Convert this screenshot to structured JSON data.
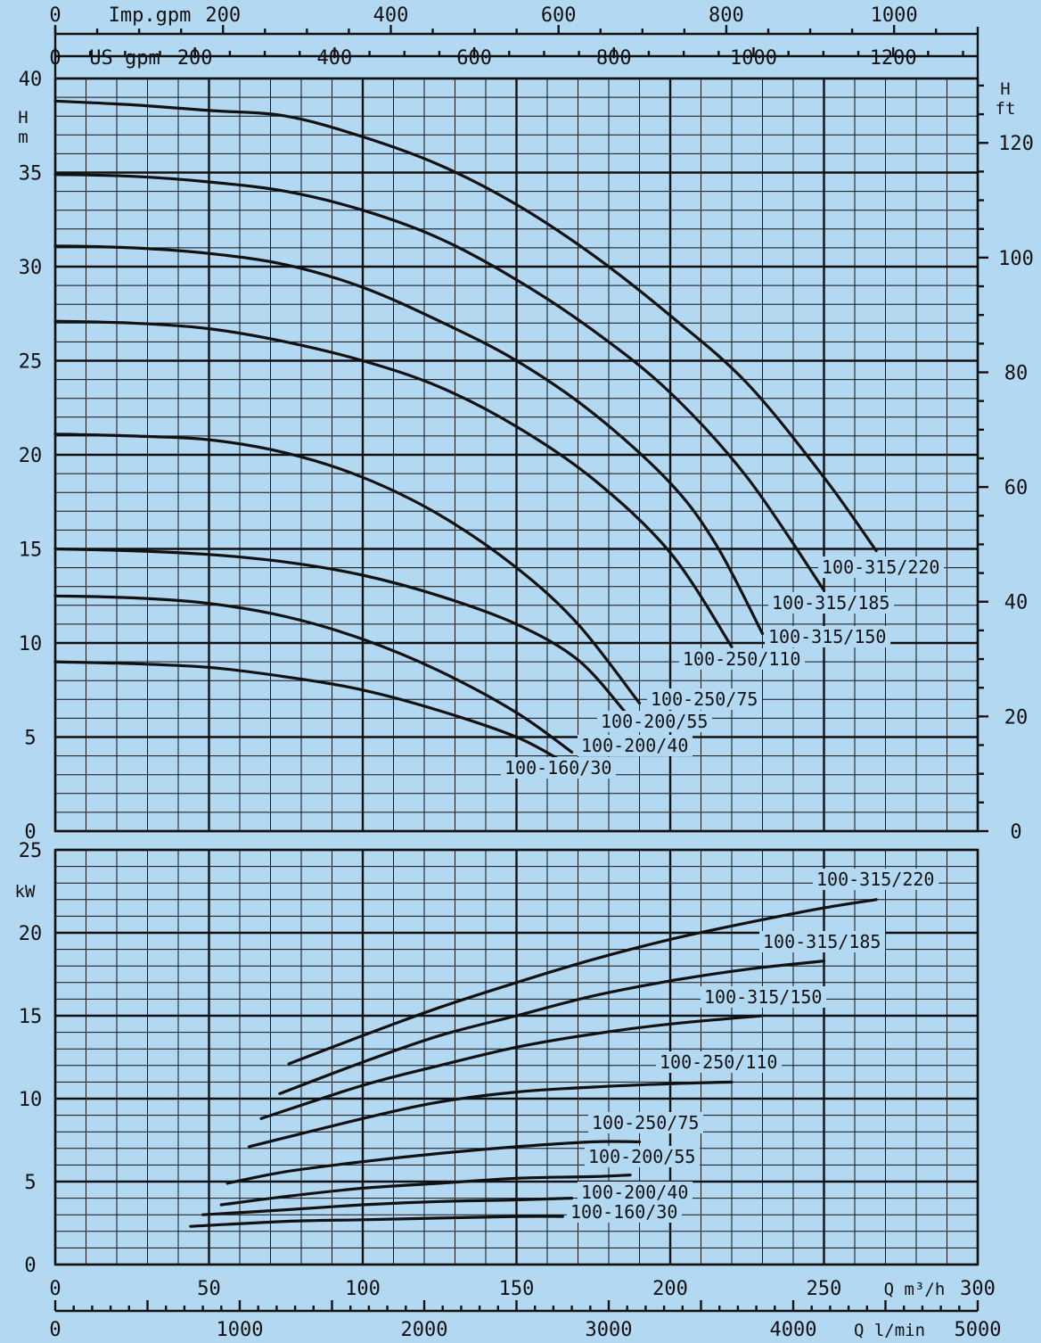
{
  "chart_data": [
    {
      "type": "line",
      "title": "",
      "ylabel": "H",
      "yunit": "m",
      "y2label": "H",
      "y2unit": "ft",
      "ylim": [
        0,
        40
      ],
      "yticks": [
        0,
        5,
        10,
        15,
        20,
        25,
        30,
        35,
        40
      ],
      "y2ticks": [
        0,
        20,
        40,
        60,
        80,
        100,
        120
      ],
      "x_top_imp_label": "Imp.gpm",
      "x_top_imp_ticks": [
        "0",
        "200",
        "400",
        "600",
        "800",
        "1000"
      ],
      "x_top_us_label": "US gpm",
      "x_top_us_ticks": [
        "0",
        "200",
        "400",
        "600",
        "800",
        "1000",
        "1200"
      ],
      "series": [
        {
          "name": "100-315/220",
          "x": [
            0,
            25,
            50,
            75,
            100,
            125,
            150,
            175,
            200,
            225,
            250,
            267
          ],
          "y": [
            38.8,
            38.6,
            38.3,
            38.0,
            36.9,
            35.4,
            33.3,
            30.6,
            27.4,
            23.8,
            18.8,
            14.9
          ]
        },
        {
          "name": "100-315/185",
          "x": [
            0,
            25,
            50,
            75,
            100,
            125,
            150,
            175,
            200,
            225,
            250
          ],
          "y": [
            34.9,
            34.8,
            34.5,
            34.0,
            33.0,
            31.5,
            29.3,
            26.6,
            23.3,
            18.8,
            12.8
          ]
        },
        {
          "name": "100-315/150",
          "x": [
            0,
            25,
            50,
            75,
            100,
            125,
            150,
            175,
            200,
            215,
            230
          ],
          "y": [
            31.1,
            31.0,
            30.7,
            30.1,
            28.9,
            27.1,
            25.0,
            22.2,
            18.5,
            15.2,
            10.5
          ]
        },
        {
          "name": "100-250/110",
          "x": [
            0,
            25,
            50,
            75,
            100,
            125,
            150,
            175,
            200,
            220
          ],
          "y": [
            27.1,
            27.0,
            26.7,
            26.0,
            25.0,
            23.6,
            21.5,
            18.7,
            14.8,
            9.8
          ]
        },
        {
          "name": "100-250/75",
          "x": [
            0,
            25,
            50,
            75,
            100,
            125,
            150,
            170,
            190
          ],
          "y": [
            21.1,
            21.0,
            20.8,
            20.1,
            18.8,
            16.8,
            14.0,
            11.0,
            6.8
          ]
        },
        {
          "name": "100-200/55",
          "x": [
            0,
            25,
            50,
            75,
            100,
            125,
            150,
            170,
            185
          ],
          "y": [
            15.0,
            14.9,
            14.7,
            14.3,
            13.6,
            12.5,
            11.0,
            9.1,
            6.4
          ]
        },
        {
          "name": "100-200/40",
          "x": [
            0,
            25,
            50,
            75,
            100,
            125,
            150,
            168
          ],
          "y": [
            12.5,
            12.4,
            12.1,
            11.4,
            10.2,
            8.5,
            6.3,
            4.2
          ]
        },
        {
          "name": "100-160/30",
          "x": [
            0,
            25,
            50,
            75,
            100,
            125,
            150,
            165
          ],
          "y": [
            9.0,
            8.9,
            8.7,
            8.2,
            7.5,
            6.4,
            5.0,
            3.7
          ]
        }
      ]
    },
    {
      "type": "line",
      "title": "",
      "ylabel": "kW",
      "ylim": [
        0,
        25
      ],
      "yticks": [
        0,
        5,
        10,
        15,
        20,
        25
      ],
      "xlabel": "Q",
      "xunit": "m³/h",
      "xlim": [
        0,
        300
      ],
      "xticks": [
        0,
        50,
        100,
        150,
        200,
        250,
        300
      ],
      "x_bottom_lmin_label": "Q l/min",
      "x_bottom_lmin_ticks": [
        "0",
        "1000",
        "2000",
        "3000",
        "4000",
        "5000"
      ],
      "series": [
        {
          "name": "100-315/220",
          "x": [
            76,
            100,
            125,
            150,
            175,
            200,
            225,
            250,
            267
          ],
          "y": [
            12.1,
            13.8,
            15.5,
            17.0,
            18.4,
            19.6,
            20.6,
            21.5,
            22.0
          ]
        },
        {
          "name": "100-315/185",
          "x": [
            73,
            100,
            125,
            150,
            175,
            200,
            225,
            250
          ],
          "y": [
            10.3,
            12.2,
            13.8,
            15.0,
            16.2,
            17.1,
            17.8,
            18.3
          ]
        },
        {
          "name": "100-315/150",
          "x": [
            67,
            100,
            125,
            150,
            175,
            200,
            230
          ],
          "y": [
            8.8,
            10.8,
            12.0,
            13.1,
            13.9,
            14.5,
            15.0
          ]
        },
        {
          "name": "100-250/110",
          "x": [
            63,
            100,
            125,
            150,
            175,
            200,
            220
          ],
          "y": [
            7.1,
            8.8,
            9.8,
            10.4,
            10.7,
            10.9,
            11.0
          ]
        },
        {
          "name": "100-250/75",
          "x": [
            56,
            75,
            100,
            125,
            150,
            175,
            190
          ],
          "y": [
            4.9,
            5.6,
            6.2,
            6.7,
            7.1,
            7.4,
            7.4
          ]
        },
        {
          "name": "100-200/55",
          "x": [
            54,
            75,
            100,
            125,
            150,
            175,
            187
          ],
          "y": [
            3.6,
            4.1,
            4.6,
            4.9,
            5.2,
            5.3,
            5.4
          ]
        },
        {
          "name": "100-200/40",
          "x": [
            48,
            75,
            100,
            125,
            150,
            168
          ],
          "y": [
            3.0,
            3.3,
            3.6,
            3.8,
            3.9,
            4.0
          ]
        },
        {
          "name": "100-160/30",
          "x": [
            44,
            75,
            100,
            125,
            150,
            165
          ],
          "y": [
            2.3,
            2.6,
            2.7,
            2.8,
            2.9,
            2.9
          ]
        }
      ]
    }
  ]
}
